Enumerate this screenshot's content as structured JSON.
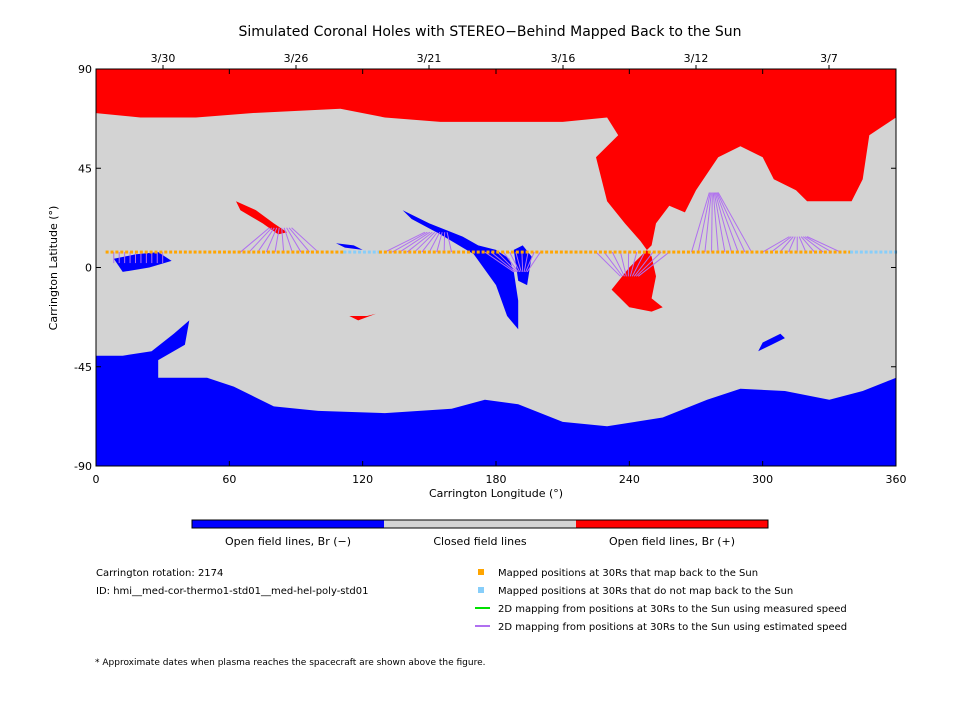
{
  "figure": {
    "title": "Simulated Coronal Holes with STEREO−Behind Mapped Back to the Sun",
    "top_dates": [
      "3/30",
      "3/26",
      "3/21",
      "3/16",
      "3/12",
      "3/7"
    ],
    "colorbar": {
      "labels": [
        "Open field lines, Br (−)",
        "Closed field lines",
        "Open field lines, Br (+)"
      ],
      "colors": [
        "#0000ff",
        "#d3d3d3",
        "#ff0000"
      ]
    },
    "legend": [
      {
        "label": "Mapped positions at 30Rs that map back to the Sun",
        "color": "#ffa500",
        "symbol": "square"
      },
      {
        "label": "Mapped positions at 30Rs that do not map back to the Sun",
        "color": "#87cefa",
        "symbol": "square"
      },
      {
        "label": "2D mapping from positions at 30Rs to the Sun using measured speed",
        "color": "#00e000",
        "symbol": "line"
      },
      {
        "label": "2D mapping from positions at 30Rs to the Sun using estimated speed",
        "color": "#b070f0",
        "symbol": "line"
      }
    ],
    "rotation_label": "Carrington rotation: 2174",
    "id_label": "ID: hmi__med-cor-thermo1-std01__med-hel-poly-std01",
    "footnote": "* Approximate dates when plasma reaches the spacecraft are shown above the figure."
  },
  "chart_data": {
    "type": "heatmap",
    "xlabel": "Carrington Longitude (°)",
    "ylabel": "Carrington Latitude (°)",
    "xlim": [
      0,
      360
    ],
    "ylim": [
      -90,
      90
    ],
    "x_ticks": [
      0,
      60,
      120,
      180,
      240,
      300,
      360
    ],
    "y_ticks": [
      -90,
      -45,
      0,
      45,
      90
    ],
    "colors": {
      "closed": "#d3d3d3",
      "positive": "#ff0000",
      "negative": "#0000ff",
      "mapped": "#ffa500",
      "unmapped": "#87cefa",
      "estimated": "#b070f0"
    },
    "north_hole_boundary": [
      [
        0,
        90
      ],
      [
        0,
        70
      ],
      [
        20,
        68
      ],
      [
        45,
        68
      ],
      [
        70,
        70
      ],
      [
        110,
        72
      ],
      [
        130,
        68
      ],
      [
        155,
        66
      ],
      [
        180,
        66
      ],
      [
        210,
        66
      ],
      [
        230,
        68
      ],
      [
        235,
        60
      ],
      [
        225,
        50
      ],
      [
        230,
        30
      ],
      [
        238,
        20
      ],
      [
        245,
        12
      ],
      [
        250,
        5
      ],
      [
        252,
        -4
      ],
      [
        250,
        -14
      ],
      [
        255,
        -18
      ],
      [
        250,
        -20
      ],
      [
        240,
        -18
      ],
      [
        232,
        -10
      ],
      [
        240,
        0
      ],
      [
        250,
        10
      ],
      [
        252,
        20
      ],
      [
        258,
        28
      ],
      [
        265,
        25
      ],
      [
        270,
        35
      ],
      [
        280,
        50
      ],
      [
        290,
        55
      ],
      [
        300,
        50
      ],
      [
        305,
        40
      ],
      [
        315,
        35
      ],
      [
        320,
        30
      ],
      [
        340,
        30
      ],
      [
        345,
        40
      ],
      [
        348,
        60
      ],
      [
        360,
        68
      ],
      [
        360,
        90
      ]
    ],
    "south_hole_boundary": [
      [
        0,
        -90
      ],
      [
        0,
        -40
      ],
      [
        12,
        -40
      ],
      [
        25,
        -38
      ],
      [
        35,
        -30
      ],
      [
        42,
        -24
      ],
      [
        40,
        -35
      ],
      [
        28,
        -42
      ],
      [
        28,
        -50
      ],
      [
        50,
        -50
      ],
      [
        62,
        -54
      ],
      [
        70,
        -58
      ],
      [
        80,
        -63
      ],
      [
        100,
        -65
      ],
      [
        130,
        -66
      ],
      [
        160,
        -64
      ],
      [
        175,
        -60
      ],
      [
        190,
        -62
      ],
      [
        210,
        -70
      ],
      [
        230,
        -72
      ],
      [
        255,
        -68
      ],
      [
        275,
        -60
      ],
      [
        290,
        -55
      ],
      [
        310,
        -56
      ],
      [
        330,
        -60
      ],
      [
        345,
        -56
      ],
      [
        360,
        -50
      ],
      [
        360,
        -90
      ]
    ],
    "small_holes": [
      {
        "sign": "positive",
        "points": [
          [
            63,
            30
          ],
          [
            72,
            26
          ],
          [
            80,
            20
          ],
          [
            86,
            16
          ],
          [
            82,
            15
          ],
          [
            75,
            20
          ],
          [
            65,
            26
          ]
        ]
      },
      {
        "sign": "positive",
        "points": [
          [
            114,
            -22
          ],
          [
            122,
            -22
          ],
          [
            126,
            -21
          ],
          [
            118,
            -24
          ]
        ]
      },
      {
        "sign": "negative",
        "points": [
          [
            138,
            26
          ],
          [
            150,
            20
          ],
          [
            165,
            14
          ],
          [
            172,
            10
          ],
          [
            180,
            8
          ],
          [
            186,
            4
          ],
          [
            188,
            -2
          ],
          [
            190,
            -15
          ],
          [
            190,
            -28
          ],
          [
            185,
            -22
          ],
          [
            180,
            -8
          ],
          [
            170,
            6
          ],
          [
            155,
            15
          ],
          [
            142,
            22
          ]
        ]
      },
      {
        "sign": "negative",
        "points": [
          [
            188,
            8
          ],
          [
            192,
            10
          ],
          [
            196,
            5
          ],
          [
            194,
            -8
          ],
          [
            190,
            -6
          ]
        ]
      },
      {
        "sign": "negative",
        "points": [
          [
            8,
            4
          ],
          [
            18,
            6
          ],
          [
            28,
            7
          ],
          [
            34,
            3
          ],
          [
            24,
            0
          ],
          [
            12,
            -2
          ]
        ]
      },
      {
        "sign": "negative",
        "points": [
          [
            298,
            -38
          ],
          [
            304,
            -35
          ],
          [
            310,
            -32
          ],
          [
            308,
            -30
          ],
          [
            300,
            -34
          ]
        ]
      },
      {
        "sign": "negative",
        "points": [
          [
            108,
            11
          ],
          [
            116,
            10
          ],
          [
            120,
            8
          ],
          [
            112,
            9
          ]
        ]
      }
    ],
    "mapped_latitude": 7,
    "mapped_points": [
      {
        "lon_range": [
          5,
          112
        ],
        "status": "mapped"
      },
      {
        "lon_range": [
          112,
          128
        ],
        "status": "unmapped"
      },
      {
        "lon_range": [
          128,
          340
        ],
        "status": "mapped"
      },
      {
        "lon_range": [
          340,
          360
        ],
        "status": "unmapped"
      }
    ],
    "mapping_fans": [
      {
        "source_lon": [
          8,
          30
        ],
        "target_lon": [
          8,
          30
        ],
        "target_lat": 2
      },
      {
        "source_lon": [
          65,
          100
        ],
        "target_lon": [
          78,
          88
        ],
        "target_lat": 18
      },
      {
        "source_lon": [
          130,
          160
        ],
        "target_lon": [
          148,
          158
        ],
        "target_lat": 16
      },
      {
        "source_lon": [
          175,
          200
        ],
        "target_lon": [
          188,
          194
        ],
        "target_lat": -2
      },
      {
        "source_lon": [
          225,
          258
        ],
        "target_lon": [
          236,
          244
        ],
        "target_lat": -4
      },
      {
        "source_lon": [
          268,
          295
        ],
        "target_lon": [
          276,
          280
        ],
        "target_lat": 34
      },
      {
        "source_lon": [
          300,
          335
        ],
        "target_lon": [
          312,
          320
        ],
        "target_lat": 14
      }
    ]
  }
}
